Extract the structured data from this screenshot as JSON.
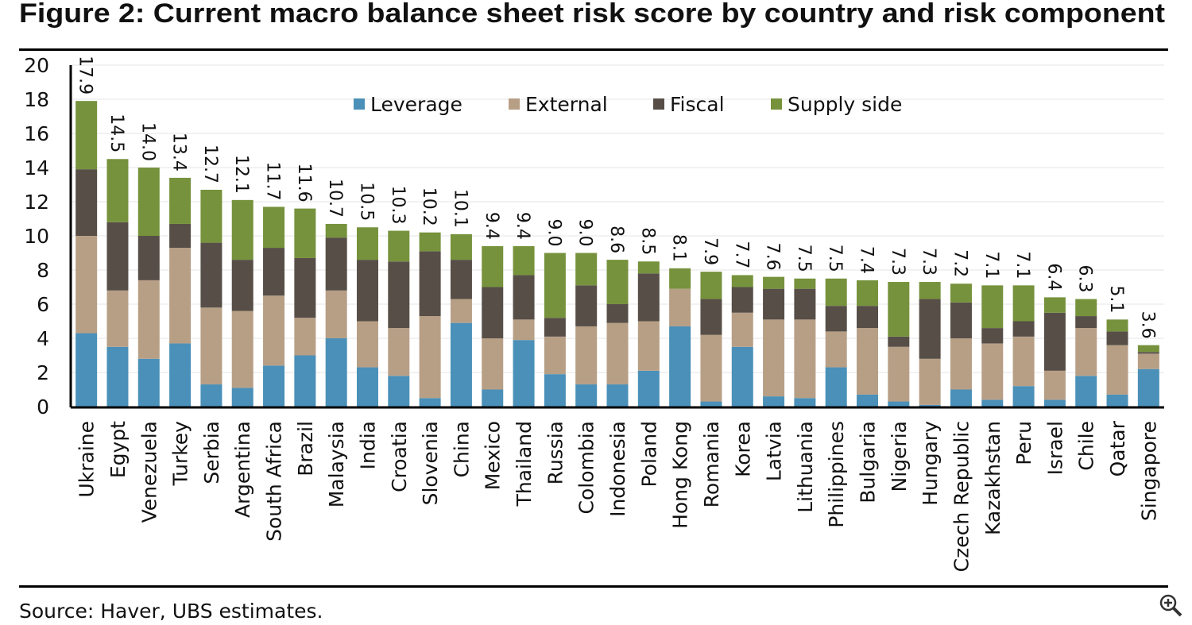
{
  "chart_data": {
    "type": "stacked_bar",
    "title": "Figure 2: Current macro balance sheet risk score by country and risk component",
    "source": "Source:  Haver, UBS estimates.",
    "categories": [
      "Ukraine",
      "Egypt",
      "Venezuela",
      "Turkey",
      "Serbia",
      "Argentina",
      "South Africa",
      "Brazil",
      "Malaysia",
      "India",
      "Croatia",
      "Slovenia",
      "China",
      "Mexico",
      "Thailand",
      "Russia",
      "Colombia",
      "Indonesia",
      "Poland",
      "Hong Kong",
      "Romania",
      "Korea",
      "Latvia",
      "Lithuania",
      "Philippines",
      "Bulgaria",
      "Nigeria",
      "Hungary",
      "Czech Republic",
      "Kazakhstan",
      "Peru",
      "Israel",
      "Chile",
      "Qatar",
      "Singapore"
    ],
    "series": [
      {
        "name": "Leverage",
        "color": "#4a90b8",
        "values": [
          4.3,
          3.5,
          2.8,
          3.7,
          1.3,
          1.1,
          2.4,
          3.0,
          4.0,
          2.3,
          1.8,
          0.5,
          4.9,
          1.0,
          3.9,
          1.9,
          1.3,
          1.3,
          2.1,
          4.7,
          0.3,
          3.5,
          0.6,
          0.5,
          2.3,
          0.7,
          0.3,
          0.1,
          1.0,
          0.4,
          1.2,
          0.4,
          1.8,
          0.7,
          2.2
        ]
      },
      {
        "name": "External",
        "color": "#b79f86",
        "values": [
          5.7,
          3.3,
          4.6,
          5.6,
          4.5,
          4.5,
          4.1,
          2.2,
          2.8,
          2.7,
          2.8,
          4.8,
          1.4,
          3.0,
          1.2,
          2.2,
          3.4,
          3.6,
          2.9,
          2.2,
          3.9,
          2.0,
          4.5,
          4.6,
          2.1,
          3.9,
          3.2,
          2.7,
          3.0,
          3.3,
          2.9,
          1.7,
          2.8,
          2.9,
          0.9
        ]
      },
      {
        "name": "Fiscal",
        "color": "#574f47",
        "values": [
          3.9,
          4.0,
          2.6,
          1.4,
          3.8,
          3.0,
          2.8,
          3.5,
          3.1,
          3.6,
          3.9,
          3.8,
          2.3,
          3.0,
          2.6,
          1.1,
          2.4,
          1.1,
          2.8,
          0,
          2.1,
          1.5,
          1.8,
          1.8,
          1.5,
          1.3,
          0.6,
          3.5,
          2.1,
          0.9,
          0.9,
          3.4,
          0.7,
          0.8,
          0.1
        ]
      },
      {
        "name": "Supply side",
        "color": "#76923c",
        "values": [
          4.0,
          3.7,
          4.0,
          2.7,
          3.1,
          3.5,
          2.4,
          2.9,
          0.8,
          1.9,
          1.8,
          1.1,
          1.5,
          2.4,
          1.7,
          3.8,
          1.9,
          2.6,
          0.7,
          1.2,
          1.6,
          0.7,
          0.7,
          0.6,
          1.6,
          1.5,
          3.2,
          1.0,
          1.1,
          2.5,
          2.1,
          0.9,
          1.0,
          0.7,
          0.4
        ]
      }
    ],
    "totals": [
      17.9,
      14.5,
      14.0,
      13.4,
      12.7,
      12.1,
      11.7,
      11.6,
      10.7,
      10.5,
      10.3,
      10.2,
      10.1,
      9.4,
      9.4,
      9.0,
      9.0,
      8.6,
      8.5,
      8.1,
      7.9,
      7.7,
      7.6,
      7.5,
      7.5,
      7.4,
      7.3,
      7.3,
      7.2,
      7.1,
      7.1,
      6.4,
      6.3,
      5.1,
      3.6
    ],
    "total_labels": [
      "17.9",
      "14.5",
      "14.0",
      "13.4",
      "12.7",
      "12.1",
      "11.7",
      "11.6",
      "10.7",
      "10.5",
      "10.3",
      "10.2",
      "10.1",
      "9.4",
      "9.4",
      "9.0",
      "9.0",
      "8.6",
      "8.5",
      "8.1",
      "7.9",
      "7.7",
      "7.6",
      "7.5",
      "7.5",
      "7.4",
      "7.3",
      "7.3",
      "7.2",
      "7.1",
      "7.1",
      "6.4",
      "6.3",
      "5.1",
      "3.6"
    ],
    "ylim": [
      0,
      20
    ],
    "yticks": [
      0,
      2,
      4,
      6,
      8,
      10,
      12,
      14,
      16,
      18,
      20
    ],
    "grid": true
  }
}
